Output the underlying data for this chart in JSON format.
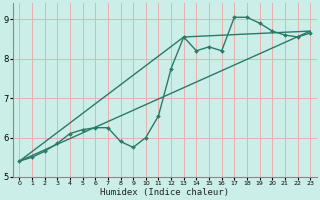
{
  "xlabel": "Humidex (Indice chaleur)",
  "bg_color": "#cceee8",
  "grid_color": "#e8b0b0",
  "line_color": "#2a7a6a",
  "xlim": [
    -0.5,
    23.5
  ],
  "ylim": [
    5.0,
    9.4
  ],
  "yticks": [
    5,
    6,
    7,
    8,
    9
  ],
  "xticks": [
    0,
    1,
    2,
    3,
    4,
    5,
    6,
    7,
    8,
    9,
    10,
    11,
    12,
    13,
    14,
    15,
    16,
    17,
    18,
    19,
    20,
    21,
    22,
    23
  ],
  "series": [
    {
      "x": [
        0,
        23
      ],
      "y": [
        5.4,
        8.7
      ],
      "marker": false,
      "markersize": 0,
      "linewidth": 1.0
    },
    {
      "x": [
        0,
        13,
        23
      ],
      "y": [
        5.4,
        8.55,
        8.7
      ],
      "marker": false,
      "markersize": 0,
      "linewidth": 1.0
    },
    {
      "x": [
        0,
        1,
        2,
        3,
        4,
        5,
        6,
        7,
        8,
        9,
        10,
        11,
        12,
        13,
        14,
        15,
        16,
        17,
        18,
        19,
        20,
        21,
        22,
        23
      ],
      "y": [
        5.4,
        5.5,
        5.65,
        5.85,
        6.1,
        6.2,
        6.25,
        6.25,
        5.9,
        5.75,
        6.0,
        6.55,
        7.75,
        8.55,
        8.2,
        8.3,
        8.2,
        9.05,
        9.05,
        8.9,
        8.7,
        8.6,
        8.55,
        8.65
      ],
      "marker": "D",
      "markersize": 2.0,
      "linewidth": 1.0
    }
  ]
}
